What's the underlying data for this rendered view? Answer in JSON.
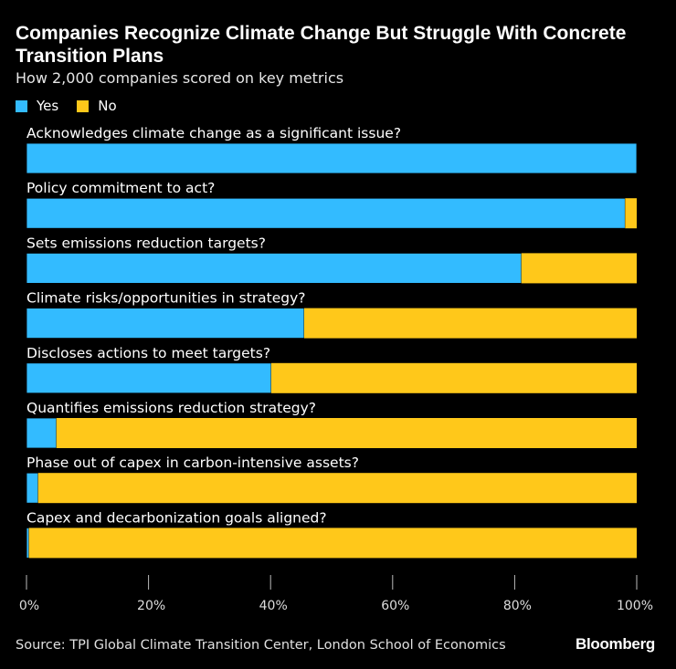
{
  "chart_data": {
    "type": "bar",
    "stacked": true,
    "orientation": "horizontal",
    "title": "Companies Recognize Climate Change But Struggle With Concrete Transition Plans",
    "subtitle": "How 2,000 companies scored on key metrics",
    "categories": [
      "Acknowledges climate change as a significant issue?",
      "Policy commitment to act?",
      "Sets emissions reduction targets?",
      "Climate risks/opportunities in strategy?",
      "Discloses actions to meet targets?",
      "Quantifies emissions reduction strategy?",
      "Phase out of capex in carbon-intensive assets?",
      "Capex and decarbonization goals aligned?"
    ],
    "series": [
      {
        "name": "Yes",
        "color": "#33bbff",
        "values": [
          100,
          98.1,
          81.1,
          45.5,
          40.1,
          4.9,
          1.9,
          0.4
        ]
      },
      {
        "name": "No",
        "color": "#ffc81a",
        "values": [
          0,
          1.9,
          18.9,
          54.5,
          59.9,
          95.1,
          98.1,
          99.6
        ]
      }
    ],
    "xlim": [
      0,
      100
    ],
    "xticks": [
      "0%",
      "20%",
      "40%",
      "60%",
      "80%",
      "100%"
    ],
    "grid": false,
    "legend_placement": "top-left"
  },
  "footer": {
    "source": "Source: TPI Global Climate Transition Center, London School of Economics",
    "logo": "Bloomberg"
  }
}
